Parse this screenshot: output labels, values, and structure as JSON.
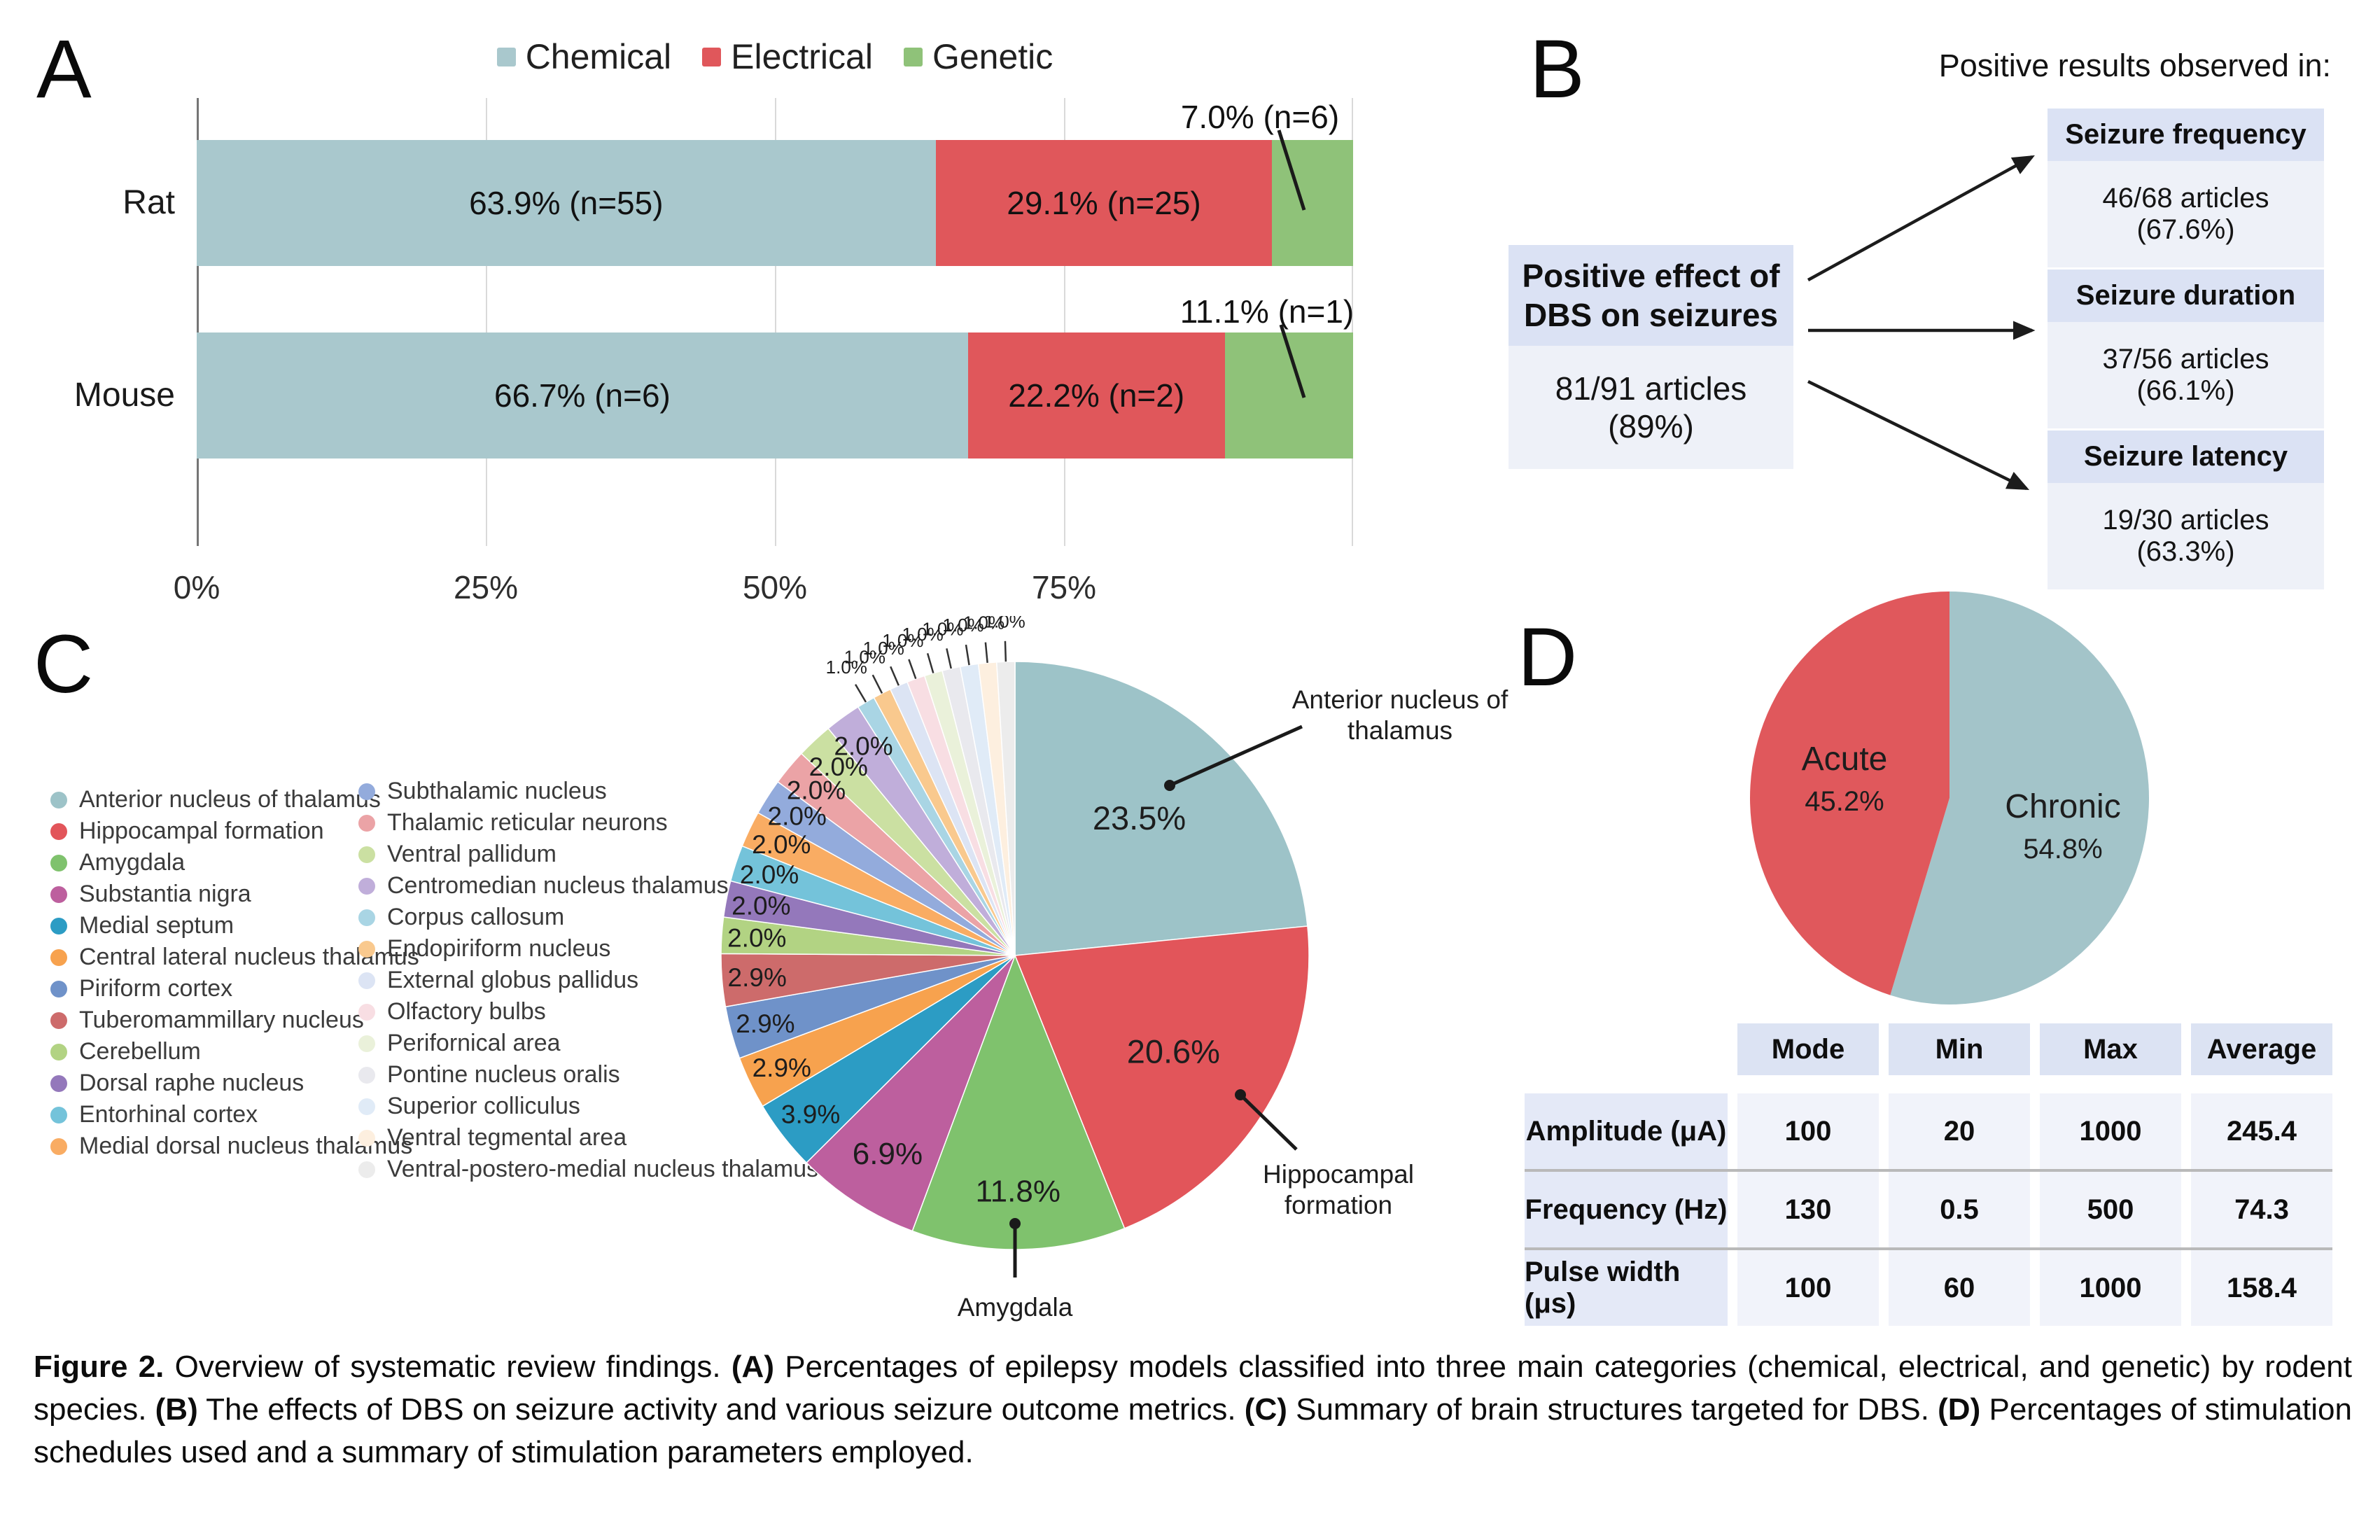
{
  "panels": {
    "a_letter": "A",
    "b_letter": "B",
    "c_letter": "C",
    "d_letter": "D"
  },
  "panelB": {
    "title": "Positive results observed in:",
    "source_box": {
      "title_line1": "Positive effect of",
      "title_line2": "DBS on seizures",
      "value": "81/91 articles (89%)"
    },
    "outcome_boxes": [
      {
        "title": "Seizure frequency",
        "value": "46/68 articles (67.6%)"
      },
      {
        "title": "Seizure duration",
        "value": "37/56 articles (66.1%)"
      },
      {
        "title": "Seizure latency",
        "value": "19/30 articles (63.3%)"
      }
    ]
  },
  "chart_data": [
    {
      "id": "epilepsy-models-by-species",
      "type": "bar",
      "stacked": true,
      "orientation": "horizontal",
      "categories": [
        "Rat",
        "Mouse"
      ],
      "series": [
        {
          "name": "Chemical",
          "color": "#a9c8cd",
          "values": [
            63.9,
            66.7
          ],
          "counts": [
            55,
            6
          ]
        },
        {
          "name": "Electrical",
          "color": "#e0575b",
          "values": [
            29.1,
            22.2
          ],
          "counts": [
            25,
            2
          ]
        },
        {
          "name": "Genetic",
          "color": "#8fc279",
          "values": [
            7.0,
            11.1
          ],
          "counts": [
            6,
            1
          ]
        }
      ],
      "bar_labels": [
        [
          "63.9% (n=55)",
          "29.1% (n=25)",
          "7.0% (n=6)"
        ],
        [
          "66.7% (n=6)",
          "22.2% (n=2)",
          "11.1% (n=1)"
        ]
      ],
      "xlim": [
        0,
        100
      ],
      "x_ticks": [
        "0%",
        "25%",
        "50%",
        "75%"
      ],
      "grid": true,
      "legend_position": "top"
    },
    {
      "id": "dbs-brain-targets",
      "type": "pie",
      "labels": [
        "Anterior nucleus of thalamus",
        "Hippocampal formation",
        "Amygdala",
        "Substantia nigra",
        "Medial septum",
        "Central lateral nucleus thalamus",
        "Piriform cortex",
        "Tuberomammillary nucleus",
        "Cerebellum",
        "Dorsal raphe nucleus",
        "Entorhinal cortex",
        "Medial dorsal nucleus thalamus",
        "Subthalamic nucleus",
        "Thalamic reticular neurons",
        "Ventral pallidum",
        "Centromedian nucleus thalamus",
        "Corpus callosum",
        "Endopiriform nucleus",
        "External globus pallidus",
        "Olfactory bulbs",
        "Perifornical area",
        "Pontine nucleus oralis",
        "Superior colliculus",
        "Ventral tegmental area",
        "Ventral-postero-medial nucleus thalamus"
      ],
      "values": [
        23.5,
        20.6,
        11.8,
        6.9,
        3.9,
        2.9,
        2.9,
        2.9,
        2.0,
        2.0,
        2.0,
        2.0,
        2.0,
        2.0,
        2.0,
        2.0,
        1.0,
        1.0,
        1.0,
        1.0,
        1.0,
        1.0,
        1.0,
        1.0,
        1.0
      ],
      "colors": [
        "#9dc3c8",
        "#e2555a",
        "#7fc26d",
        "#bd5f9e",
        "#2c9cc4",
        "#f7a24e",
        "#6f92c9",
        "#cd6b6b",
        "#b2d383",
        "#9478bb",
        "#74c3da",
        "#f9ac63",
        "#93abdc",
        "#eba3a6",
        "#cbe0a2",
        "#c0aeda",
        "#a9d5e4",
        "#f9c98e",
        "#dce4f4",
        "#f8dee3",
        "#eaf1da",
        "#e9e9ee",
        "#e0ebf7",
        "#fdefdf",
        "#ececec"
      ],
      "callout_annotations": [
        {
          "lines": [
            "Anterior nucleus of",
            "thalamus"
          ]
        },
        {
          "lines": [
            "Hippocampal",
            "formation"
          ]
        },
        {
          "lines": [
            "Amygdala"
          ]
        }
      ],
      "legend_columns": [
        [
          0,
          1,
          2,
          3,
          4,
          5,
          6,
          7,
          8,
          9,
          10,
          11
        ],
        [
          12,
          13,
          14,
          15,
          16,
          17,
          18,
          19,
          20,
          21,
          22,
          23,
          24
        ]
      ]
    },
    {
      "id": "stimulation-schedules",
      "type": "pie",
      "labels": [
        "Chronic",
        "Acute"
      ],
      "values": [
        54.8,
        45.2
      ],
      "colors": [
        "#a3c4c9",
        "#e0585c"
      ],
      "label_texts": {
        "acute": "Acute",
        "acute_pct": "45.2%",
        "chronic": "Chronic",
        "chronic_pct": "54.8%"
      }
    },
    {
      "id": "stimulation-parameters",
      "type": "table",
      "columns": [
        "Mode",
        "Min",
        "Max",
        "Average"
      ],
      "rows": [
        {
          "label": "Amplitude (μA)",
          "values": [
            "100",
            "20",
            "1000",
            "245.4"
          ]
        },
        {
          "label": "Frequency (Hz)",
          "values": [
            "130",
            "0.5",
            "500",
            "74.3"
          ]
        },
        {
          "label": "Pulse width (μs)",
          "values": [
            "100",
            "60",
            "1000",
            "158.4"
          ]
        }
      ]
    }
  ],
  "caption": {
    "segments": [
      {
        "text": "Figure 2.",
        "bold": true
      },
      {
        "text": " Overview of systematic review findings. ",
        "bold": false
      },
      {
        "text": "(A)",
        "bold": true
      },
      {
        "text": " Percentages of epilepsy models classified into three main categories (chemical, electrical, and genetic) by rodent species. ",
        "bold": false
      },
      {
        "text": "(B)",
        "bold": true
      },
      {
        "text": " The effects of DBS on seizure activity and various seizure outcome metrics. ",
        "bold": false
      },
      {
        "text": "(C)",
        "bold": true
      },
      {
        "text": " Summary of brain structures targeted for DBS. ",
        "bold": false
      },
      {
        "text": "(D)",
        "bold": true
      },
      {
        "text": " Percentages of stimulation schedules used and a summary of stimulation parameters employed.",
        "bold": false
      }
    ]
  }
}
